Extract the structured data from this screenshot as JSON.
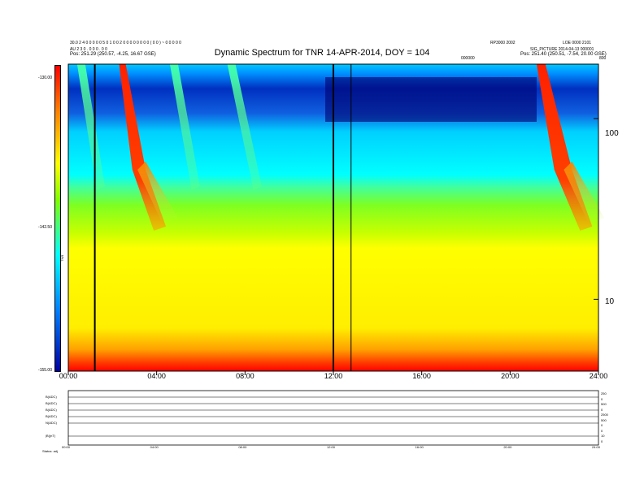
{
  "header": {
    "left_line1": "30.0 2 4 0 0 0 0 0 5 0 1 0 0 2 0 0 0 0 0 0 0 0 ( 0 0 ) ~ 0 0 0 0 0",
    "left_line2": "AU 2 3 0 . 0 0 0 . 0 0",
    "left_line3": "Pos: 251.29 (250.57, -4.25, 16.67 GSE)",
    "right_top_a": "RP3000 2002",
    "right_top_b": "LOE 0000 2101",
    "right_line2": "SIG_PICTURE 2014-04-13 000001",
    "right_line3": "Pos: 251.40 (250.51, -7.54, 20.00 GSE)",
    "mid_label": "000000",
    "corner_label": "800"
  },
  "chart_data": {
    "type": "heatmap",
    "title": "Dynamic Spectrum for TNR 14-APR-2014, DOY = 104",
    "xlabel": "",
    "ylabel": "",
    "x_ticks": [
      "00:00",
      "04:00",
      "08:00",
      "12:00",
      "16:00",
      "20:00",
      "24:00"
    ],
    "x_range_hours": [
      0,
      24
    ],
    "y_scale": "log",
    "y_ticks_right": [
      {
        "value": 100,
        "label": "100"
      },
      {
        "value": 10,
        "label": "10"
      }
    ],
    "y_range": [
      4,
      200
    ],
    "colorbar": {
      "label": "TNR",
      "ticks": [
        "-130.00",
        "-142.50",
        "-155.00"
      ],
      "range": [
        -155,
        -130
      ]
    },
    "data_gaps_hours": [
      1.2,
      12.0,
      12.8
    ],
    "bursts": [
      {
        "start_hour": 2.3,
        "end_hour": 3.5,
        "intensity": "strong"
      },
      {
        "start_hour": 0.4,
        "end_hour": 1.1,
        "intensity": "moderate"
      },
      {
        "start_hour": 4.6,
        "end_hour": 5.4,
        "intensity": "moderate"
      },
      {
        "start_hour": 7.2,
        "end_hour": 8.2,
        "intensity": "moderate"
      },
      {
        "start_hour": 21.2,
        "end_hour": 22.8,
        "intensity": "strong"
      }
    ]
  },
  "subpanels": {
    "labels": [
      "B(ADC)",
      "B(ADC)",
      "B(ADC)",
      "B(ADC)",
      "N(ADC)",
      "|B|(nT)"
    ],
    "right_labels": [
      "250",
      "0",
      "500",
      "0",
      "2500",
      "500",
      "0",
      "0",
      "10",
      "0"
    ],
    "x_ticks": [
      "00:00",
      "04:00",
      "08:00",
      "12:00",
      "16:00",
      "20:00",
      "24:00"
    ],
    "footer_label": "Status: adj"
  }
}
